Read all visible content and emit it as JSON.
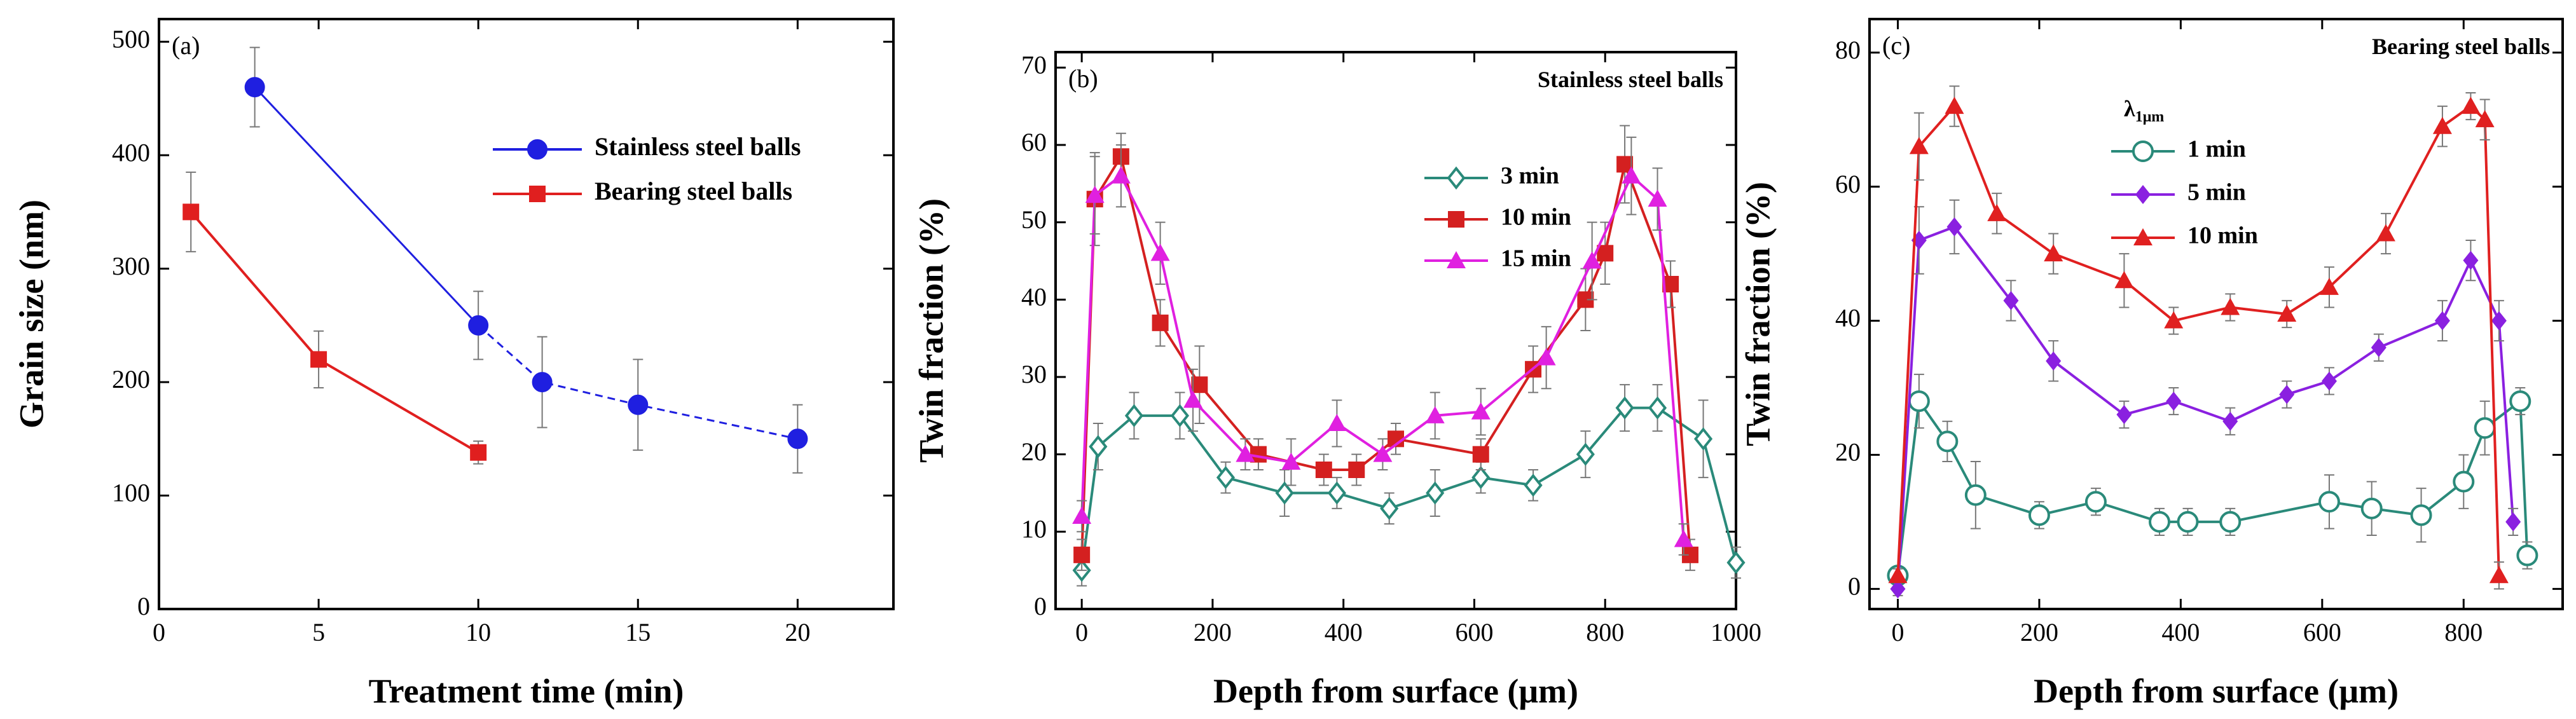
{
  "figure": {
    "panels": [
      {
        "panel_label": "(a)",
        "title": "",
        "legend_title": "",
        "legend_title_sub": "",
        "xlabel": "Treatment time (min)",
        "ylabel": "Grain size (nm)",
        "chart_data": {
          "type": "line",
          "xlim": [
            0,
            23
          ],
          "ylim": [
            0,
            520
          ],
          "xticks": [
            0,
            5,
            10,
            15,
            20
          ],
          "yticks": [
            0,
            100,
            200,
            300,
            400,
            500
          ],
          "legend_position": "top-right",
          "series": [
            {
              "name": "Stainless steel balls",
              "color": "#1f1fe0",
              "marker": "circle",
              "line": "solid",
              "points": [
                {
                  "x": 3,
                  "y": 460,
                  "err": 35
                },
                {
                  "x": 10,
                  "y": 250,
                  "err": 30
                },
                {
                  "x": 12,
                  "y": 200,
                  "err": 40
                },
                {
                  "x": 15,
                  "y": 180,
                  "err": 40
                },
                {
                  "x": 20,
                  "y": 150,
                  "err": 30
                }
              ]
            },
            {
              "name": "Bearing steel balls",
              "color": "#e01f1f",
              "marker": "square",
              "line": "solid",
              "points": [
                {
                  "x": 1,
                  "y": 350,
                  "err": 35
                },
                {
                  "x": 5,
                  "y": 220,
                  "err": 25
                },
                {
                  "x": 10,
                  "y": 138,
                  "err": 10
                }
              ]
            }
          ]
        }
      },
      {
        "panel_label": "(b)",
        "title": "Stainless steel balls",
        "legend_title": "",
        "legend_title_sub": "",
        "xlabel": "Depth from surface (μm)",
        "ylabel": "Twin fraction (%)",
        "chart_data": {
          "type": "line",
          "xlim": [
            -40,
            1000
          ],
          "ylim": [
            0,
            72
          ],
          "xticks": [
            0,
            200,
            400,
            600,
            800,
            1000
          ],
          "yticks": [
            0,
            10,
            20,
            30,
            40,
            50,
            60,
            70
          ],
          "legend_position": "top-center",
          "series": [
            {
              "name": "3 min",
              "color": "#2a8a7a",
              "marker": "diamond-open",
              "points": [
                {
                  "x": 0,
                  "y": 5,
                  "err": 2
                },
                {
                  "x": 25,
                  "y": 21,
                  "err": 3
                },
                {
                  "x": 80,
                  "y": 25,
                  "err": 3
                },
                {
                  "x": 150,
                  "y": 25,
                  "err": 3
                },
                {
                  "x": 220,
                  "y": 17,
                  "err": 2
                },
                {
                  "x": 310,
                  "y": 15,
                  "err": 3
                },
                {
                  "x": 390,
                  "y": 15,
                  "err": 2
                },
                {
                  "x": 470,
                  "y": 13,
                  "err": 2
                },
                {
                  "x": 540,
                  "y": 15,
                  "err": 3
                },
                {
                  "x": 610,
                  "y": 17,
                  "err": 2
                },
                {
                  "x": 690,
                  "y": 16,
                  "err": 2
                },
                {
                  "x": 770,
                  "y": 20,
                  "err": 3
                },
                {
                  "x": 830,
                  "y": 26,
                  "err": 3
                },
                {
                  "x": 880,
                  "y": 26,
                  "err": 3
                },
                {
                  "x": 950,
                  "y": 22,
                  "err": 5
                },
                {
                  "x": 1000,
                  "y": 6,
                  "err": 2
                }
              ]
            },
            {
              "name": "10 min",
              "color": "#d42020",
              "marker": "square",
              "points": [
                {
                  "x": 0,
                  "y": 7,
                  "err": 2
                },
                {
                  "x": 20,
                  "y": 53,
                  "err": 6
                },
                {
                  "x": 60,
                  "y": 58.5,
                  "err": 3
                },
                {
                  "x": 120,
                  "y": 37,
                  "err": 3
                },
                {
                  "x": 180,
                  "y": 29,
                  "err": 5
                },
                {
                  "x": 270,
                  "y": 20,
                  "err": 2
                },
                {
                  "x": 370,
                  "y": 18,
                  "err": 2
                },
                {
                  "x": 420,
                  "y": 18,
                  "err": 2
                },
                {
                  "x": 480,
                  "y": 22,
                  "err": 2
                },
                {
                  "x": 610,
                  "y": 20,
                  "err": 2
                },
                {
                  "x": 690,
                  "y": 31,
                  "err": 3
                },
                {
                  "x": 770,
                  "y": 40,
                  "err": 4
                },
                {
                  "x": 800,
                  "y": 46,
                  "err": 4
                },
                {
                  "x": 830,
                  "y": 57.5,
                  "err": 5
                },
                {
                  "x": 900,
                  "y": 42,
                  "err": 3
                },
                {
                  "x": 930,
                  "y": 7,
                  "err": 2
                }
              ]
            },
            {
              "name": "15 min",
              "color": "#e020e0",
              "marker": "triangle",
              "points": [
                {
                  "x": 0,
                  "y": 12,
                  "err": 2
                },
                {
                  "x": 20,
                  "y": 53.5,
                  "err": 5
                },
                {
                  "x": 60,
                  "y": 56,
                  "err": 4
                },
                {
                  "x": 120,
                  "y": 46,
                  "err": 4
                },
                {
                  "x": 170,
                  "y": 27,
                  "err": 4
                },
                {
                  "x": 250,
                  "y": 20,
                  "err": 2
                },
                {
                  "x": 320,
                  "y": 19,
                  "err": 3
                },
                {
                  "x": 390,
                  "y": 24,
                  "err": 3
                },
                {
                  "x": 460,
                  "y": 20,
                  "err": 2
                },
                {
                  "x": 540,
                  "y": 25,
                  "err": 3
                },
                {
                  "x": 610,
                  "y": 25.5,
                  "err": 3
                },
                {
                  "x": 710,
                  "y": 32.5,
                  "err": 4
                },
                {
                  "x": 780,
                  "y": 45,
                  "err": 5
                },
                {
                  "x": 840,
                  "y": 56,
                  "err": 5
                },
                {
                  "x": 880,
                  "y": 53,
                  "err": 4
                },
                {
                  "x": 920,
                  "y": 9,
                  "err": 2
                }
              ]
            }
          ]
        }
      },
      {
        "panel_label": "(c)",
        "title": "Bearing steel balls",
        "legend_title": "λ",
        "legend_title_sub": "1μm",
        "xlabel": "Depth from surface (μm)",
        "ylabel": "Twin fraction (%)",
        "chart_data": {
          "type": "line",
          "xlim": [
            -40,
            940
          ],
          "ylim": [
            -3,
            85
          ],
          "xticks": [
            0,
            200,
            400,
            600,
            800
          ],
          "yticks": [
            0,
            20,
            40,
            60,
            80
          ],
          "legend_position": "top-center",
          "series": [
            {
              "name": "1 min",
              "color": "#2a8a7a",
              "marker": "circle-open",
              "points": [
                {
                  "x": 0,
                  "y": 2,
                  "err": 1
                },
                {
                  "x": 30,
                  "y": 28,
                  "err": 4
                },
                {
                  "x": 70,
                  "y": 22,
                  "err": 3
                },
                {
                  "x": 110,
                  "y": 14,
                  "err": 5
                },
                {
                  "x": 200,
                  "y": 11,
                  "err": 2
                },
                {
                  "x": 280,
                  "y": 13,
                  "err": 2
                },
                {
                  "x": 370,
                  "y": 10,
                  "err": 2
                },
                {
                  "x": 410,
                  "y": 10,
                  "err": 2
                },
                {
                  "x": 470,
                  "y": 10,
                  "err": 2
                },
                {
                  "x": 610,
                  "y": 13,
                  "err": 4
                },
                {
                  "x": 670,
                  "y": 12,
                  "err": 4
                },
                {
                  "x": 740,
                  "y": 11,
                  "err": 4
                },
                {
                  "x": 800,
                  "y": 16,
                  "err": 4
                },
                {
                  "x": 830,
                  "y": 24,
                  "err": 4
                },
                {
                  "x": 880,
                  "y": 28,
                  "err": 2
                },
                {
                  "x": 890,
                  "y": 5,
                  "err": 2
                }
              ]
            },
            {
              "name": "5 min",
              "color": "#8a20e0",
              "marker": "diamond",
              "points": [
                {
                  "x": 0,
                  "y": 0,
                  "err": 1
                },
                {
                  "x": 30,
                  "y": 52,
                  "err": 5
                },
                {
                  "x": 80,
                  "y": 54,
                  "err": 4
                },
                {
                  "x": 160,
                  "y": 43,
                  "err": 3
                },
                {
                  "x": 220,
                  "y": 34,
                  "err": 3
                },
                {
                  "x": 320,
                  "y": 26,
                  "err": 2
                },
                {
                  "x": 390,
                  "y": 28,
                  "err": 2
                },
                {
                  "x": 470,
                  "y": 25,
                  "err": 2
                },
                {
                  "x": 550,
                  "y": 29,
                  "err": 2
                },
                {
                  "x": 610,
                  "y": 31,
                  "err": 2
                },
                {
                  "x": 680,
                  "y": 36,
                  "err": 2
                },
                {
                  "x": 770,
                  "y": 40,
                  "err": 3
                },
                {
                  "x": 810,
                  "y": 49,
                  "err": 3
                },
                {
                  "x": 850,
                  "y": 40,
                  "err": 3
                },
                {
                  "x": 870,
                  "y": 10,
                  "err": 2
                }
              ]
            },
            {
              "name": "10 min",
              "color": "#e02020",
              "marker": "triangle",
              "points": [
                {
                  "x": 0,
                  "y": 2,
                  "err": 1
                },
                {
                  "x": 30,
                  "y": 66,
                  "err": 5
                },
                {
                  "x": 80,
                  "y": 72,
                  "err": 3
                },
                {
                  "x": 140,
                  "y": 56,
                  "err": 3
                },
                {
                  "x": 220,
                  "y": 50,
                  "err": 3
                },
                {
                  "x": 320,
                  "y": 46,
                  "err": 4
                },
                {
                  "x": 390,
                  "y": 40,
                  "err": 2
                },
                {
                  "x": 470,
                  "y": 42,
                  "err": 2
                },
                {
                  "x": 550,
                  "y": 41,
                  "err": 2
                },
                {
                  "x": 610,
                  "y": 45,
                  "err": 3
                },
                {
                  "x": 690,
                  "y": 53,
                  "err": 3
                },
                {
                  "x": 770,
                  "y": 69,
                  "err": 3
                },
                {
                  "x": 810,
                  "y": 72,
                  "err": 2
                },
                {
                  "x": 830,
                  "y": 70,
                  "err": 3
                },
                {
                  "x": 850,
                  "y": 2,
                  "err": 2
                }
              ]
            }
          ]
        }
      }
    ]
  }
}
